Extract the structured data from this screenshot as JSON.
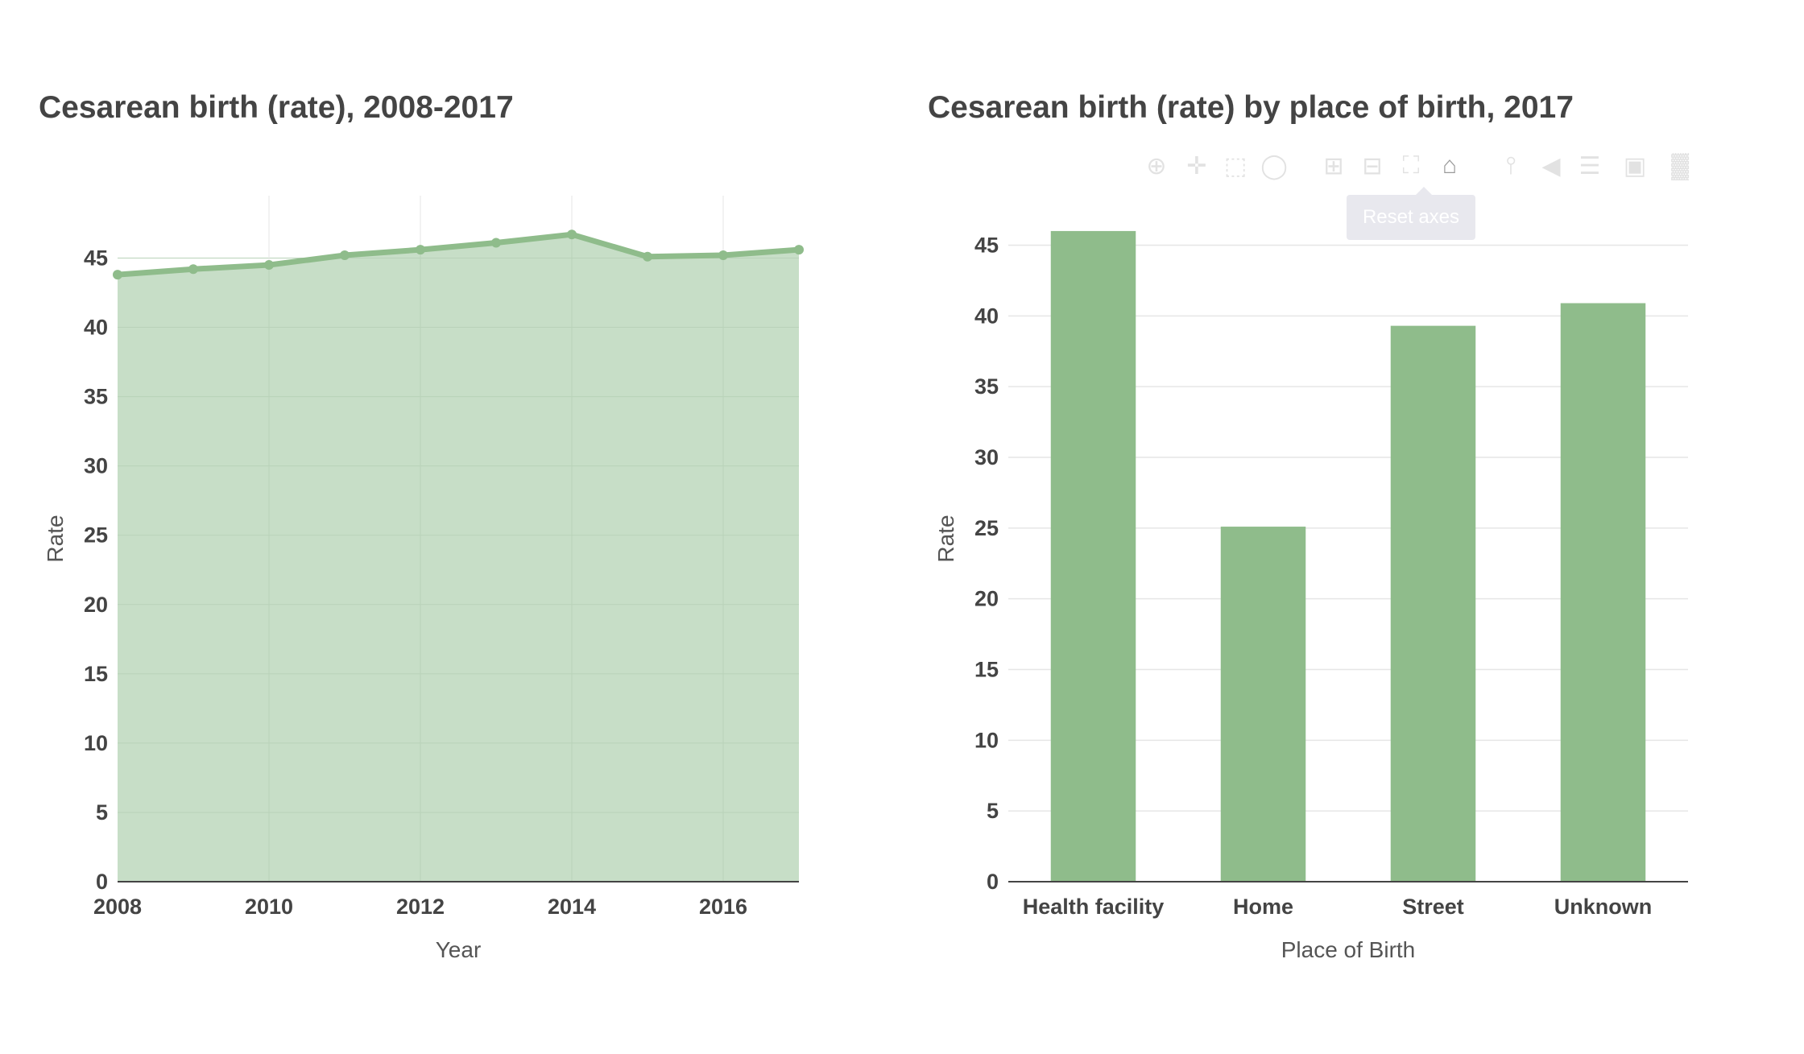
{
  "colors": {
    "line": "#8fbc8b",
    "area_fill": "#c7dec7",
    "bar": "#8fbc8b",
    "grid": "#e6e6e6",
    "axis": "#444444"
  },
  "modebar": {
    "items": [
      "zoom-icon",
      "pan-icon",
      "box-select-icon",
      "lasso-select-icon",
      "zoom-in-icon",
      "zoom-out-icon",
      "autoscale-icon",
      "home-icon",
      "spike-lines-icon",
      "hover-closest-icon",
      "hover-compare-icon",
      "camera-icon",
      "plotly-logo-icon"
    ],
    "tooltip": "Reset axes"
  },
  "chart_data": [
    {
      "type": "area",
      "title": "Cesarean birth (rate), 2008-2017",
      "xlabel": "Year",
      "ylabel": "Rate",
      "x": [
        2008,
        2009,
        2010,
        2011,
        2012,
        2013,
        2014,
        2015,
        2016,
        2017
      ],
      "values": [
        43.8,
        44.2,
        44.5,
        45.2,
        45.6,
        46.1,
        46.7,
        45.1,
        45.2,
        45.6
      ],
      "xlim": [
        2008,
        2017
      ],
      "ylim": [
        0,
        49.5
      ],
      "xticks": [
        "2008",
        "2010",
        "2012",
        "2014",
        "2016"
      ],
      "xtick_values": [
        2008,
        2010,
        2012,
        2014,
        2016
      ],
      "yticks": [
        "0",
        "5",
        "10",
        "15",
        "20",
        "25",
        "30",
        "35",
        "40",
        "45"
      ],
      "grid": true
    },
    {
      "type": "bar",
      "title": "Cesarean birth (rate) by place of birth, 2017",
      "xlabel": "Place of Birth",
      "ylabel": "Rate",
      "categories": [
        "Health facility",
        "Home",
        "Street",
        "Unknown"
      ],
      "values": [
        46.0,
        25.1,
        39.3,
        40.9
      ],
      "ylim": [
        0,
        48.5
      ],
      "yticks": [
        "0",
        "5",
        "10",
        "15",
        "20",
        "25",
        "30",
        "35",
        "40",
        "45"
      ],
      "grid": true
    }
  ]
}
